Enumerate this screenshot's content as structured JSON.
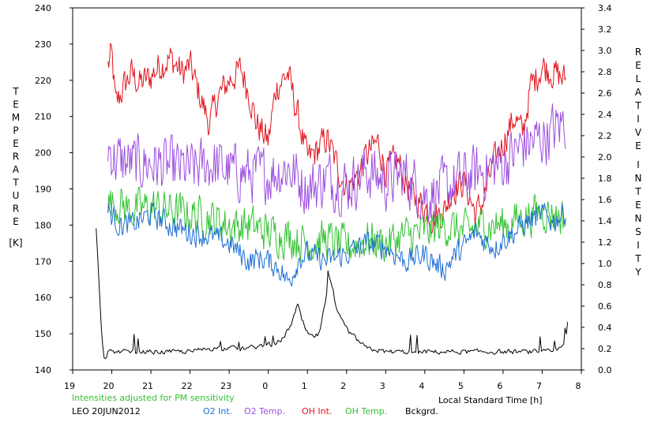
{
  "chart_data": {
    "type": "line",
    "title": "",
    "left_axis": {
      "label_letters": [
        "T",
        "E",
        "M",
        "P",
        "E",
        "R",
        "A",
        "T",
        "U",
        "R",
        "E"
      ],
      "unit": "[K]",
      "range": [
        140,
        240
      ],
      "ticks": [
        "140",
        "150",
        "160",
        "170",
        "180",
        "190",
        "200",
        "210",
        "220",
        "230",
        "240"
      ]
    },
    "right_axis": {
      "label_letters_word1": [
        "R",
        "E",
        "L",
        "A",
        "T",
        "I",
        "V",
        "E"
      ],
      "label_letters_word2": [
        "I",
        "N",
        "T",
        "E",
        "N",
        "S",
        "I",
        "T",
        "Y"
      ],
      "range": [
        0.0,
        3.4
      ],
      "ticks": [
        "0.0",
        "0.2",
        "0.4",
        "0.6",
        "0.8",
        "1.0",
        "1.2",
        "1.4",
        "1.6",
        "1.8",
        "2.0",
        "2.2",
        "2.4",
        "2.6",
        "2.8",
        "3.0",
        "3.2",
        "3.4"
      ]
    },
    "x_axis": {
      "label": "Local Standard Time [h]",
      "range": [
        19,
        32
      ],
      "ticks": [
        "19",
        "20",
        "21",
        "22",
        "23",
        "0",
        "1",
        "2",
        "3",
        "4",
        "5",
        "6",
        "7",
        "8"
      ]
    },
    "note": "Intensities adjusted for PM sensitivity",
    "station": "LEO 20JUN2012",
    "colors": {
      "o2_int": "#1f6fd6",
      "o2_temp": "#9d4fe0",
      "oh_int": "#e0141e",
      "oh_temp": "#33c233",
      "bckgrd": "#000000"
    },
    "legend": [
      {
        "key": "o2_int",
        "label": "O2 Int."
      },
      {
        "key": "o2_temp",
        "label": "O2 Temp."
      },
      {
        "key": "oh_int",
        "label": "OH Int."
      },
      {
        "key": "oh_temp",
        "label": "OH Temp."
      },
      {
        "key": "bckgrd",
        "label": "Bckgrd."
      }
    ],
    "series": [
      {
        "key": "oh_int",
        "axis": "left",
        "noise": 4,
        "x": [
          19.9,
          20.0,
          20.1,
          20.3,
          20.5,
          20.7,
          21.0,
          21.2,
          21.5,
          21.8,
          22.0,
          22.3,
          22.5,
          22.7,
          23.0,
          23.3,
          23.5,
          23.7,
          24.0,
          24.2,
          24.5,
          24.8,
          25.0,
          25.2,
          25.5,
          25.7,
          26.0,
          26.3,
          26.5,
          26.8,
          27.0,
          27.3,
          27.5,
          27.7,
          28.0,
          28.2,
          28.5,
          28.7,
          29.0,
          29.3,
          29.5,
          29.7,
          30.0,
          30.3,
          30.5,
          30.7,
          31.0,
          31.3,
          31.6
        ],
        "y": [
          224,
          227,
          213,
          218,
          222,
          219,
          221,
          224,
          226,
          222,
          224,
          214,
          208,
          215,
          220,
          223,
          217,
          208,
          203,
          218,
          222,
          208,
          198,
          200,
          204,
          198,
          190,
          194,
          199,
          203,
          195,
          198,
          192,
          188,
          185,
          182,
          184,
          190,
          192,
          183,
          187,
          195,
          203,
          210,
          205,
          218,
          224,
          222,
          220
        ]
      },
      {
        "key": "o2_temp",
        "axis": "left",
        "noise": 7,
        "x": [
          19.9,
          20.1,
          20.5,
          21.0,
          21.5,
          22.0,
          22.5,
          23.0,
          23.5,
          24.0,
          24.5,
          25.0,
          25.5,
          26.0,
          26.5,
          27.0,
          27.5,
          28.0,
          28.5,
          29.0,
          29.5,
          30.0,
          30.5,
          31.0,
          31.3,
          31.6
        ],
        "y": [
          202,
          198,
          197,
          197,
          196,
          195,
          197,
          195,
          194,
          194,
          196,
          190,
          193,
          191,
          195,
          192,
          194,
          188,
          190,
          193,
          195,
          197,
          202,
          204,
          206,
          209
        ]
      },
      {
        "key": "oh_temp",
        "axis": "left",
        "noise": 5,
        "x": [
          19.9,
          20.2,
          20.5,
          21.0,
          21.5,
          22.0,
          22.5,
          23.0,
          23.5,
          24.0,
          24.5,
          25.0,
          25.5,
          26.0,
          26.5,
          27.0,
          27.5,
          28.0,
          28.5,
          29.0,
          29.5,
          30.0,
          30.5,
          31.0,
          31.3,
          31.6
        ],
        "y": [
          186,
          186,
          184,
          185,
          184,
          183,
          182,
          180,
          180,
          178,
          177,
          175,
          176,
          174,
          176,
          175,
          177,
          178,
          180,
          178,
          180,
          180,
          182,
          184,
          183,
          182
        ]
      },
      {
        "key": "o2_int",
        "axis": "left",
        "noise": 3,
        "x": [
          19.9,
          20.2,
          20.5,
          21.0,
          21.5,
          22.0,
          22.5,
          23.0,
          23.3,
          23.5,
          23.8,
          24.0,
          24.3,
          24.5,
          24.8,
          25.0,
          25.5,
          26.0,
          26.5,
          27.0,
          27.5,
          28.0,
          28.3,
          28.5,
          28.8,
          29.0,
          29.3,
          29.5,
          29.8,
          30.0,
          30.3,
          30.5,
          31.0,
          31.3,
          31.6
        ],
        "y": [
          184,
          180,
          180,
          183,
          180,
          178,
          177,
          175,
          172,
          170,
          171,
          170,
          168,
          164,
          171,
          172,
          170,
          172,
          175,
          174,
          170,
          172,
          169,
          168,
          172,
          174,
          178,
          176,
          174,
          176,
          178,
          180,
          183,
          181,
          184
        ]
      },
      {
        "key": "bckgrd",
        "axis": "left",
        "noise": 0.6,
        "x": [
          19.6,
          19.65,
          19.7,
          19.75,
          19.8,
          19.85,
          19.9,
          20.0,
          20.5,
          21.0,
          21.5,
          22.0,
          22.5,
          23.0,
          23.5,
          24.0,
          24.2,
          24.4,
          24.6,
          24.75,
          24.85,
          25.0,
          25.15,
          25.3,
          25.45,
          25.55,
          25.65,
          25.75,
          25.9,
          26.1,
          26.3,
          26.5,
          27.0,
          27.5,
          28.0,
          28.5,
          29.0,
          29.5,
          30.0,
          30.5,
          31.0,
          31.3,
          31.5,
          31.6,
          31.65
        ],
        "y": [
          179,
          170,
          158,
          148,
          144,
          143,
          145,
          145,
          145,
          145,
          145,
          145,
          146,
          146,
          146,
          147,
          147,
          149,
          153,
          158,
          154,
          150,
          149,
          150,
          158,
          165,
          162,
          156,
          153,
          150,
          148,
          146,
          145,
          145,
          145,
          145,
          145,
          145,
          145,
          145,
          145,
          145,
          146,
          148,
          153
        ]
      }
    ]
  }
}
